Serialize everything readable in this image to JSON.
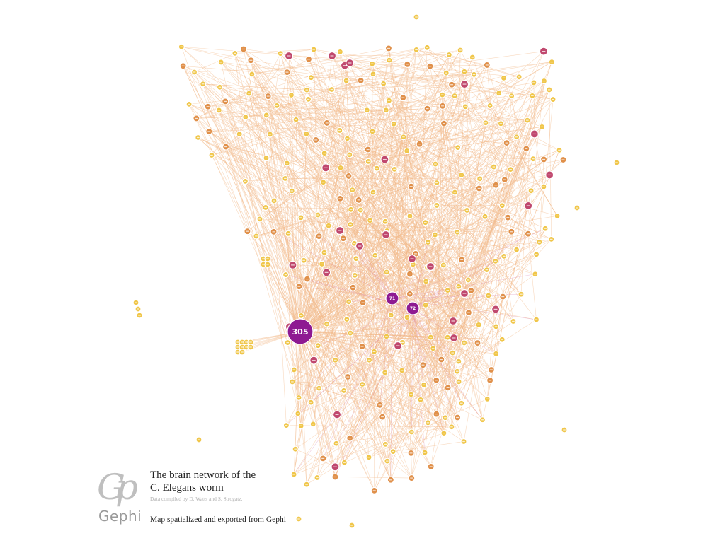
{
  "logo": {
    "mark": "Gp",
    "word": "Gephi"
  },
  "caption": {
    "title": "The brain network of the\nC. Elegans worm",
    "credit": "Data compiled by D. Watts and S. Strogatz.",
    "export_note": "Map spatialized and exported from Gephi"
  },
  "colors": {
    "small_node": "#f0c64a",
    "mid_node": "#e0904a",
    "large_node": "#c0486e",
    "hub_node": "#8e1a92",
    "edge": "#f2b98a",
    "edge_hot": "#d06aa0"
  },
  "hubs": [
    {
      "label": "305",
      "degree": 305
    },
    {
      "label": "71",
      "degree": 71
    },
    {
      "label": "72",
      "degree": 72
    }
  ]
}
